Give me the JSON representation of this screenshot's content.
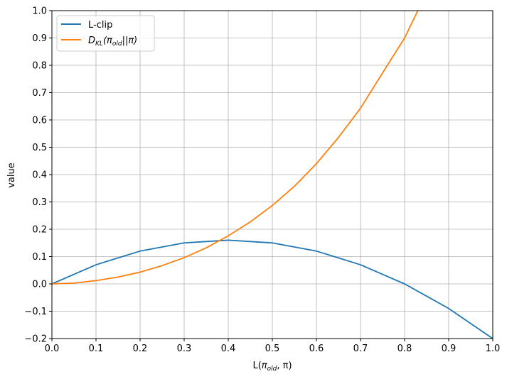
{
  "chart_data": {
    "type": "line",
    "xlabel_main": "L(",
    "xlabel_pi": "π",
    "xlabel_sub": "old",
    "xlabel_rest": ", π)",
    "ylabel": "value",
    "xlim": [
      0.0,
      1.0
    ],
    "ylim": [
      -0.2,
      1.0
    ],
    "grid": true,
    "legend_position": "upper-left",
    "x_ticks": [
      "0.0",
      "0.1",
      "0.2",
      "0.3",
      "0.4",
      "0.5",
      "0.6",
      "0.7",
      "0.8",
      "0.9",
      "1.0"
    ],
    "y_ticks": [
      "−0.2",
      "−0.1",
      "0.0",
      "0.1",
      "0.2",
      "0.3",
      "0.4",
      "0.5",
      "0.6",
      "0.7",
      "0.8",
      "0.9",
      "1.0"
    ],
    "series": [
      {
        "name": "L-clip",
        "color": "#1f77b4",
        "x": [
          0.0,
          0.05,
          0.1,
          0.15,
          0.2,
          0.25,
          0.3,
          0.35,
          0.4,
          0.45,
          0.5,
          0.55,
          0.6,
          0.65,
          0.7,
          0.75,
          0.8,
          0.85,
          0.9,
          0.95,
          1.0
        ],
        "y": [
          0.0,
          0.035,
          0.07,
          0.095,
          0.12,
          0.135,
          0.15,
          0.155,
          0.16,
          0.155,
          0.15,
          0.135,
          0.12,
          0.095,
          0.07,
          0.035,
          0.0,
          -0.045,
          -0.09,
          -0.145,
          -0.2
        ]
      },
      {
        "name_main": "D",
        "name_sub": "KL",
        "name_rest_open": "(π",
        "name_sub2": "old",
        "name_rest_close": "||π)",
        "color": "#ff7f0e",
        "x": [
          0.0,
          0.05,
          0.1,
          0.15,
          0.2,
          0.25,
          0.3,
          0.35,
          0.4,
          0.45,
          0.5,
          0.55,
          0.6,
          0.65,
          0.7,
          0.75,
          0.8,
          0.83
        ],
        "y": [
          0.0,
          0.003,
          0.012,
          0.025,
          0.043,
          0.067,
          0.096,
          0.132,
          0.176,
          0.227,
          0.287,
          0.357,
          0.44,
          0.536,
          0.643,
          0.772,
          0.9,
          1.0
        ]
      }
    ]
  }
}
